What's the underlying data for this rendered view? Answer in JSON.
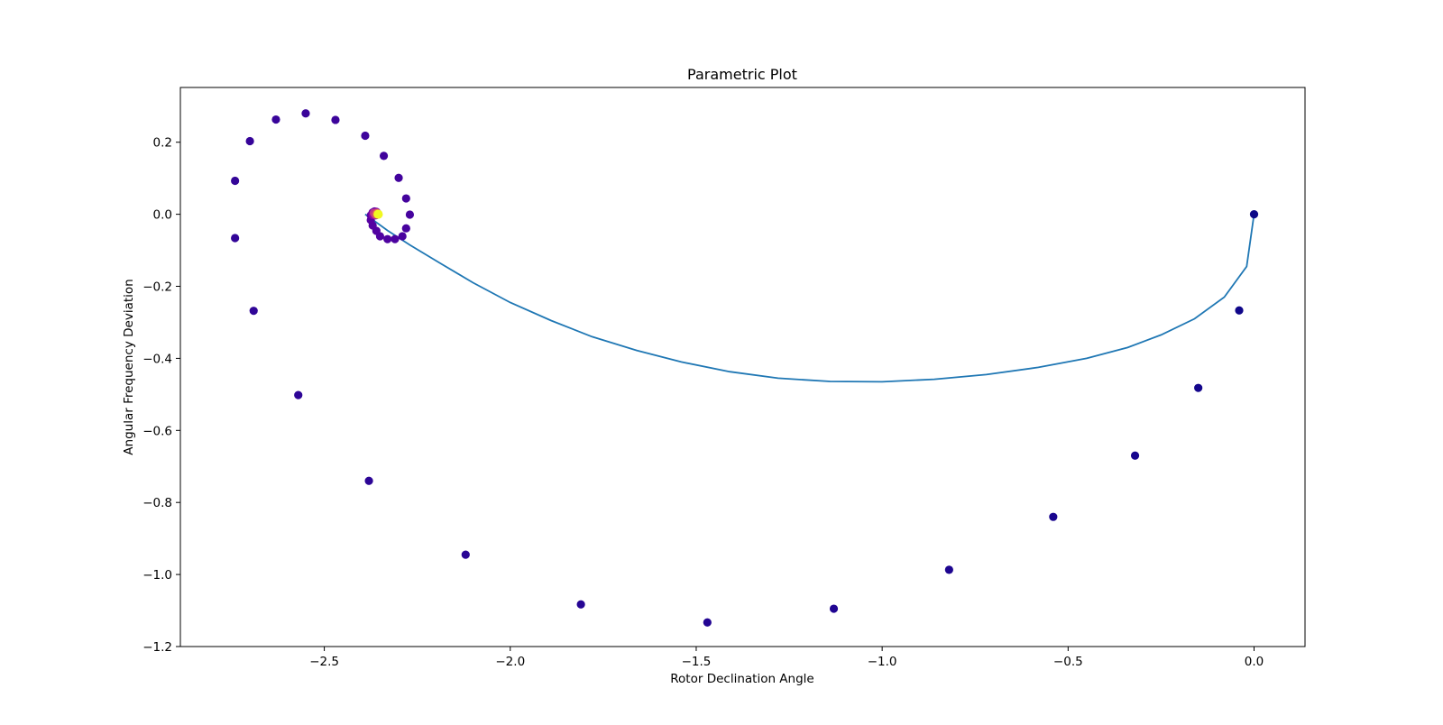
{
  "chart_data": {
    "type": "scatter",
    "title": "Parametric Plot",
    "xlabel": "Rotor Declination Angle",
    "ylabel": "Angular Frequency Deviation",
    "xlim": [
      -2.887,
      0.137
    ],
    "ylim": [
      -1.2,
      0.352
    ],
    "xticks": [
      -2.5,
      -2.0,
      -1.5,
      -1.0,
      -0.5,
      0.0
    ],
    "xtick_labels": [
      "−2.5",
      "−2.0",
      "−1.5",
      "−1.0",
      "−0.5",
      "0.0"
    ],
    "yticks": [
      -1.2,
      -1.0,
      -0.8,
      -0.6,
      -0.4,
      -0.2,
      0.0,
      0.2
    ],
    "ytick_labels": [
      "−1.2",
      "−1.0",
      "−0.8",
      "−0.6",
      "−0.4",
      "−0.2",
      "0.0",
      "0.2"
    ],
    "grid": false,
    "legend": "none",
    "colormap": "plasma",
    "line_color": "#1f77b4",
    "line": {
      "x": [
        0.0,
        -0.02,
        -0.08,
        -0.16,
        -0.25,
        -0.34,
        -0.45,
        -0.58,
        -0.72,
        -0.86,
        -1.0,
        -1.14,
        -1.28,
        -1.41,
        -1.54,
        -1.66,
        -1.78,
        -1.89,
        -2.0,
        -2.1,
        -2.19,
        -2.27,
        -2.33,
        -2.37,
        -2.39
      ],
      "y": [
        0.0,
        -0.145,
        -0.23,
        -0.29,
        -0.335,
        -0.37,
        -0.4,
        -0.425,
        -0.445,
        -0.458,
        -0.465,
        -0.464,
        -0.455,
        -0.437,
        -0.41,
        -0.378,
        -0.34,
        -0.295,
        -0.245,
        -0.19,
        -0.135,
        -0.085,
        -0.045,
        -0.015,
        0.0
      ]
    },
    "points": [
      {
        "x": 0.0,
        "y": 0.0,
        "c": "#0d0887"
      },
      {
        "x": -0.04,
        "y": -0.267,
        "c": "#10078a"
      },
      {
        "x": -0.15,
        "y": -0.482,
        "c": "#14068c"
      },
      {
        "x": -0.32,
        "y": -0.67,
        "c": "#17068e"
      },
      {
        "x": -0.54,
        "y": -0.84,
        "c": "#1a068f"
      },
      {
        "x": -0.82,
        "y": -0.987,
        "c": "#1d0590"
      },
      {
        "x": -1.13,
        "y": -1.095,
        "c": "#200592"
      },
      {
        "x": -1.47,
        "y": -1.133,
        "c": "#230593"
      },
      {
        "x": -1.81,
        "y": -1.083,
        "c": "#260594"
      },
      {
        "x": -2.12,
        "y": -0.945,
        "c": "#290595"
      },
      {
        "x": -2.38,
        "y": -0.74,
        "c": "#2c0596"
      },
      {
        "x": -2.57,
        "y": -0.502,
        "c": "#2e0597"
      },
      {
        "x": -2.69,
        "y": -0.268,
        "c": "#300597"
      },
      {
        "x": -2.74,
        "y": -0.066,
        "c": "#320598"
      },
      {
        "x": -2.74,
        "y": 0.093,
        "c": "#340598"
      },
      {
        "x": -2.7,
        "y": 0.203,
        "c": "#360499"
      },
      {
        "x": -2.63,
        "y": 0.263,
        "c": "#38049a"
      },
      {
        "x": -2.55,
        "y": 0.28,
        "c": "#3a049a"
      },
      {
        "x": -2.47,
        "y": 0.262,
        "c": "#3c049b"
      },
      {
        "x": -2.39,
        "y": 0.218,
        "c": "#3e049c"
      },
      {
        "x": -2.34,
        "y": 0.162,
        "c": "#40039c"
      },
      {
        "x": -2.3,
        "y": 0.101,
        "c": "#42039d"
      },
      {
        "x": -2.28,
        "y": 0.044,
        "c": "#44039d"
      },
      {
        "x": -2.27,
        "y": -0.001,
        "c": "#46039e"
      },
      {
        "x": -2.28,
        "y": -0.039,
        "c": "#48029e"
      },
      {
        "x": -2.29,
        "y": -0.061,
        "c": "#4a029f"
      },
      {
        "x": -2.31,
        "y": -0.069,
        "c": "#4c02a0"
      },
      {
        "x": -2.33,
        "y": -0.069,
        "c": "#4e02a0"
      },
      {
        "x": -2.35,
        "y": -0.061,
        "c": "#5002a1"
      },
      {
        "x": -2.36,
        "y": -0.046,
        "c": "#5202a1"
      },
      {
        "x": -2.37,
        "y": -0.031,
        "c": "#5402a2"
      },
      {
        "x": -2.375,
        "y": -0.016,
        "c": "#5601a2"
      },
      {
        "x": -2.375,
        "y": -0.003,
        "c": "#5801a3"
      },
      {
        "x": -2.37,
        "y": 0.005,
        "c": "#5a01a3"
      },
      {
        "x": -2.365,
        "y": 0.008,
        "c": "#5c01a4"
      },
      {
        "x": -2.36,
        "y": 0.007,
        "c": "#5e01a4"
      },
      {
        "x": -2.358,
        "y": 0.004,
        "c": "#6001a5"
      },
      {
        "x": -2.357,
        "y": 0.001,
        "c": "#6201a5"
      },
      {
        "x": -2.357,
        "y": -0.001,
        "c": "#6401a6"
      },
      {
        "x": -2.358,
        "y": -0.001,
        "c": "#6601a6"
      },
      {
        "x": -2.359,
        "y": 0.0,
        "c": "#6800a7"
      },
      {
        "x": -2.36,
        "y": 0.0,
        "c": "#6a00a8"
      },
      {
        "x": -2.365,
        "y": 0.003,
        "c": "#6c00a8"
      },
      {
        "x": -2.37,
        "y": 0.004,
        "c": "#7100a8"
      },
      {
        "x": -2.368,
        "y": 0.002,
        "c": "#7501a8"
      },
      {
        "x": -2.365,
        "y": 0.0,
        "c": "#7a02a8"
      },
      {
        "x": -2.36,
        "y": 0.001,
        "c": "#7e03a8"
      },
      {
        "x": -2.366,
        "y": 0.003,
        "c": "#8305a7"
      },
      {
        "x": -2.37,
        "y": -0.002,
        "c": "#8707a6"
      },
      {
        "x": -2.362,
        "y": -0.003,
        "c": "#8b0aa5"
      },
      {
        "x": -2.356,
        "y": 0.002,
        "c": "#9c179e"
      },
      {
        "x": -2.36,
        "y": 0.006,
        "c": "#a72197"
      },
      {
        "x": -2.367,
        "y": 0.004,
        "c": "#bd3786"
      },
      {
        "x": -2.363,
        "y": -0.001,
        "c": "#cc4778"
      },
      {
        "x": -2.358,
        "y": 0.003,
        "c": "#e16462"
      },
      {
        "x": -2.357,
        "y": 0.001,
        "c": "#ed7953"
      },
      {
        "x": -2.356,
        "y": 0.0,
        "c": "#fb9f3a"
      },
      {
        "x": -2.355,
        "y": 0.0,
        "c": "#fdca26"
      },
      {
        "x": -2.355,
        "y": 0.0,
        "c": "#f0f921"
      }
    ]
  }
}
